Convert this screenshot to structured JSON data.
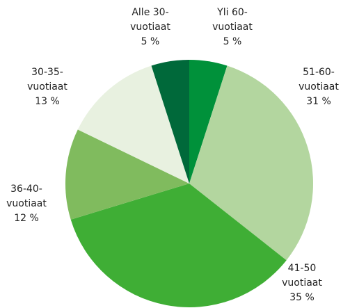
{
  "chart_data": {
    "type": "pie",
    "categories": [
      "Yli 60-vuotiaat",
      "51-60-vuotiaat",
      "41-50 vuotiaat",
      "36-40-vuotiaat",
      "30-35-vuotiaat",
      "Alle 30-vuotiaat"
    ],
    "values": [
      5,
      31,
      35,
      12,
      13,
      5
    ],
    "value_labels": [
      "5 %",
      "31 %",
      "35 %",
      "12 %",
      "13 %",
      "5 %"
    ],
    "colors": [
      "#00913a",
      "#b3d69f",
      "#3fae35",
      "#80bb5e",
      "#e8f1e0",
      "#00693a"
    ]
  }
}
